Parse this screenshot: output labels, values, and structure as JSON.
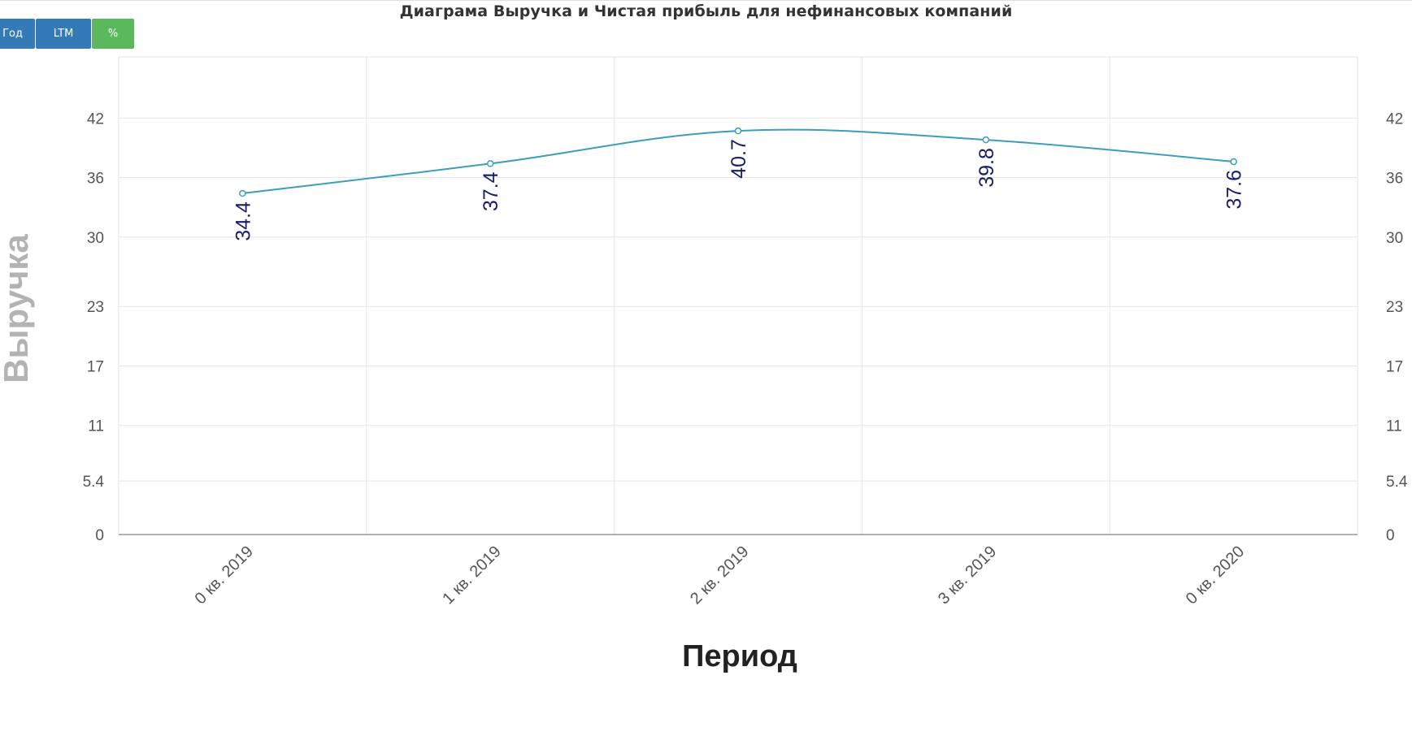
{
  "toolbar": {
    "year_label": "Год",
    "ltm_label": "LTM",
    "pct_label": "%"
  },
  "colors": {
    "line": "#3d9dbd",
    "button_blue": "#337ab7",
    "button_green": "#5cb85c",
    "data_label": "#1a1a66"
  },
  "chart_data": {
    "type": "line",
    "title": "Диаграма Выручка и Чистая прибыль для нефинансовых компаний",
    "xlabel": "Период",
    "ylabel": "Выручка",
    "categories": [
      "0 кв. 2019",
      "1 кв. 2019",
      "2 кв. 2019",
      "3 кв. 2019",
      "0 кв. 2020"
    ],
    "series": [
      {
        "values": [
          34.4,
          37.4,
          40.7,
          39.8,
          37.6
        ],
        "labels": [
          "34.4",
          "37.4",
          "40.7",
          "39.8",
          "37.6"
        ]
      }
    ],
    "yticks": [
      "0",
      "5.4",
      "11",
      "17",
      "23",
      "30",
      "36",
      "42"
    ],
    "ylim": [
      0,
      46.2
    ],
    "grid": true,
    "secondary_y_axis": true
  }
}
